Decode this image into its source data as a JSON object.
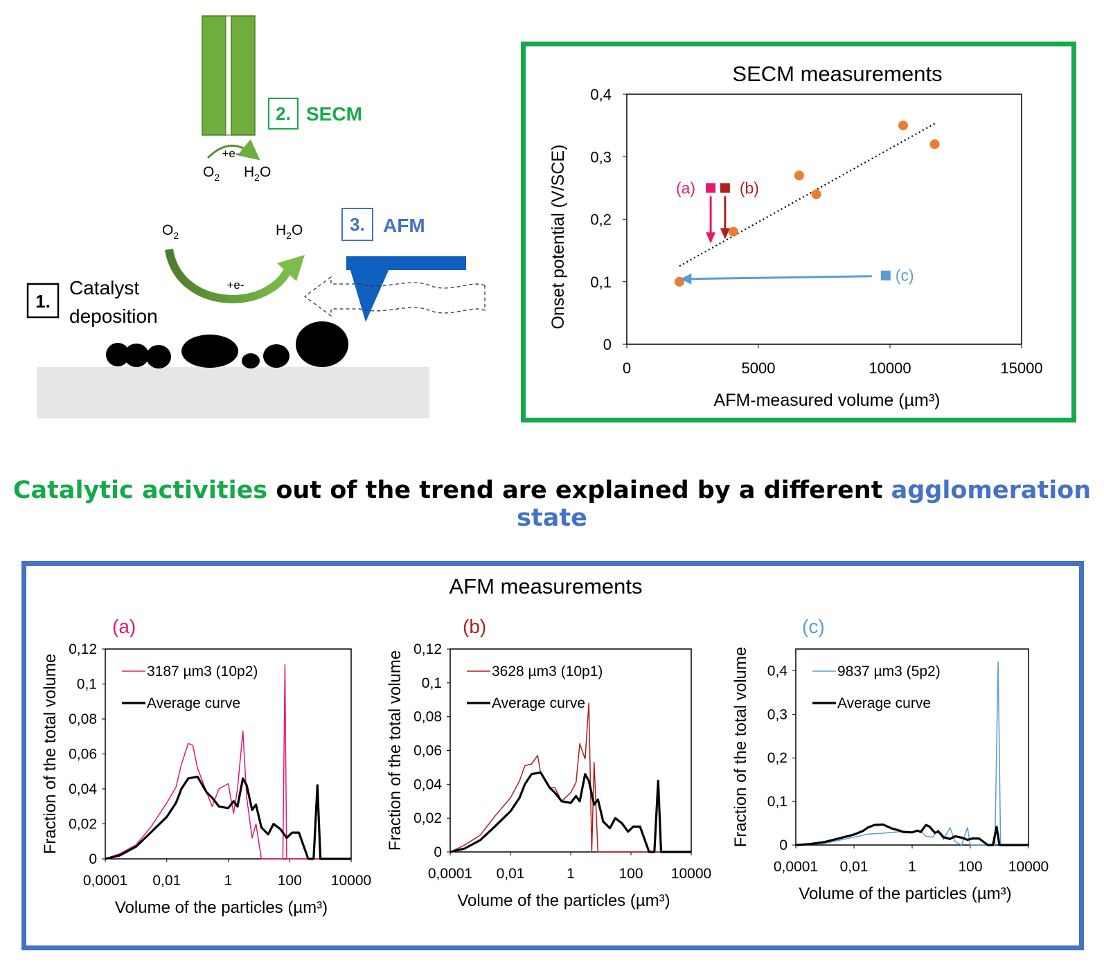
{
  "workflow": {
    "step1": {
      "number": "1.",
      "label_line1": "Catalyst",
      "label_line2": "deposition"
    },
    "step2": {
      "number": "2.",
      "label": "SECM"
    },
    "step3": {
      "number": "3.",
      "label": "AFM"
    },
    "reaction": {
      "reactant": "O",
      "reactant_sub": "2",
      "product_a": "H",
      "product_sub": "2",
      "product_b": "O",
      "electron": "+e-"
    }
  },
  "headline": {
    "part1": "Catalytic activities",
    "part2": " out of the trend are explained by a different ",
    "part3": "agglomeration state"
  },
  "colors": {
    "green": "#16A94A",
    "blue": "#4472C4",
    "orange": "#ED7D31",
    "pink": "#E6186E",
    "darkred": "#B01E1E",
    "lightblue": "#5B9BD5"
  },
  "chart_data": [
    {
      "type": "scatter",
      "title": "SECM measurements",
      "xlabel": "AFM-measured volume (µm³)",
      "ylabel": "Onset potential (V/SCE)",
      "xlim": [
        0,
        15000
      ],
      "ylim": [
        0,
        0.4
      ],
      "xticks": [
        "0",
        "5000",
        "10000",
        "15000"
      ],
      "yticks": [
        "0",
        "0,1",
        "0,2",
        "0,3",
        "0,4"
      ],
      "points": [
        {
          "x": 2000,
          "y": 0.1
        },
        {
          "x": 4050,
          "y": 0.18
        },
        {
          "x": 6550,
          "y": 0.27
        },
        {
          "x": 7200,
          "y": 0.24
        },
        {
          "x": 10500,
          "y": 0.35
        },
        {
          "x": 11700,
          "y": 0.32
        }
      ],
      "trendline": {
        "x": [
          2000,
          11700
        ],
        "y": [
          0.125,
          0.353
        ]
      },
      "annotations": [
        {
          "label": "(a)",
          "x": 3187,
          "y": 0.25
        },
        {
          "label": "(b)",
          "x": 3628,
          "y": 0.25
        },
        {
          "label": "(c)",
          "x": 9837,
          "y": 0.11
        }
      ]
    },
    {
      "type": "line",
      "panel_label": "(a)",
      "xlabel": "Volume of the particles (µm³)",
      "ylabel": "Fraction of the total volume",
      "xscale": "log",
      "xlim": [
        0.0001,
        10000
      ],
      "ylim": [
        0,
        0.12
      ],
      "xticks": [
        "0,0001",
        "0,01",
        "1",
        "100",
        "10000"
      ],
      "yticks": [
        "0",
        "0,02",
        "0,04",
        "0,06",
        "0,08",
        "0,1",
        "0,12"
      ],
      "series": [
        {
          "name": "3187 µm3 (10p2)",
          "x": [
            0.0001,
            0.0003,
            0.001,
            0.003,
            0.01,
            0.02,
            0.03,
            0.05,
            0.07,
            0.1,
            0.2,
            0.3,
            0.5,
            1,
            1.5,
            2,
            3,
            4,
            6,
            8,
            12,
            20,
            35,
            45,
            55,
            60,
            70,
            80,
            100,
            1000,
            10000
          ],
          "y": [
            0,
            0.003,
            0.008,
            0.018,
            0.032,
            0.041,
            0.054,
            0.066,
            0.065,
            0.052,
            0.038,
            0.03,
            0.04,
            0.043,
            0.026,
            0.04,
            0.073,
            0.035,
            0.012,
            0.02,
            0.0,
            0.0,
            0.0,
            0.0,
            0.0,
            0.0,
            0.111,
            0.0,
            0.0,
            0.0,
            0.0
          ]
        },
        {
          "name": "Average curve",
          "x": [
            0.0001,
            0.0003,
            0.001,
            0.003,
            0.01,
            0.02,
            0.03,
            0.05,
            0.1,
            0.2,
            0.3,
            0.5,
            1,
            1.5,
            2,
            3,
            4,
            6,
            8,
            12,
            20,
            30,
            50,
            80,
            120,
            200,
            400,
            600,
            800,
            1000,
            1200,
            2000,
            10000
          ],
          "y": [
            0,
            0.002,
            0.007,
            0.015,
            0.024,
            0.032,
            0.04,
            0.046,
            0.047,
            0.038,
            0.035,
            0.03,
            0.029,
            0.033,
            0.03,
            0.046,
            0.042,
            0.028,
            0.031,
            0.018,
            0.014,
            0.02,
            0.017,
            0.012,
            0.015,
            0.015,
            0.0,
            0.0,
            0.042,
            0.0,
            0.0,
            0.0,
            0.0
          ]
        }
      ]
    },
    {
      "type": "line",
      "panel_label": "(b)",
      "xlabel": "Volume of the particles (µm³)",
      "ylabel": "Fraction of the total volume",
      "xscale": "log",
      "xlim": [
        0.0001,
        10000
      ],
      "ylim": [
        0,
        0.12
      ],
      "xticks": [
        "0,0001",
        "0,01",
        "1",
        "100",
        "10000"
      ],
      "yticks": [
        "0",
        "0,02",
        "0,04",
        "0,06",
        "0,08",
        "0,1",
        "0,12"
      ],
      "series": [
        {
          "name": "3628 µm3 (10p1)",
          "x": [
            0.0001,
            0.0003,
            0.001,
            0.003,
            0.01,
            0.02,
            0.03,
            0.05,
            0.08,
            0.1,
            0.2,
            0.3,
            0.5,
            1,
            1.5,
            2,
            3,
            4,
            5,
            6,
            8,
            10,
            15,
            20,
            30,
            60,
            10000
          ],
          "y": [
            0,
            0.004,
            0.01,
            0.021,
            0.032,
            0.042,
            0.051,
            0.052,
            0.057,
            0.047,
            0.038,
            0.038,
            0.03,
            0.035,
            0.041,
            0.064,
            0.055,
            0.088,
            0.0,
            0.053,
            0.0,
            0.0,
            0.0,
            0.0,
            0.0,
            0.0,
            0.0
          ]
        },
        {
          "name": "Average curve",
          "x": [
            0.0001,
            0.0003,
            0.001,
            0.003,
            0.01,
            0.02,
            0.03,
            0.05,
            0.1,
            0.2,
            0.3,
            0.5,
            1,
            1.5,
            2,
            3,
            4,
            6,
            8,
            12,
            20,
            30,
            50,
            80,
            120,
            200,
            400,
            600,
            800,
            1000,
            1200,
            2000,
            10000
          ],
          "y": [
            0,
            0.002,
            0.007,
            0.015,
            0.024,
            0.032,
            0.04,
            0.046,
            0.047,
            0.038,
            0.035,
            0.03,
            0.029,
            0.033,
            0.03,
            0.046,
            0.042,
            0.028,
            0.031,
            0.018,
            0.014,
            0.02,
            0.017,
            0.012,
            0.015,
            0.015,
            0.0,
            0.0,
            0.042,
            0.0,
            0.0,
            0.0,
            0.0
          ]
        }
      ]
    },
    {
      "type": "line",
      "panel_label": "(c)",
      "xlabel": "Volume of the particles (µm³)",
      "ylabel": "Fraction of the total volume",
      "xscale": "log",
      "xlim": [
        0.0001,
        10000
      ],
      "ylim": [
        0,
        0.45
      ],
      "xticks": [
        "0,0001",
        "0,01",
        "1",
        "100",
        "10000"
      ],
      "yticks": [
        "0",
        "0,1",
        "0,2",
        "0,3",
        "0,4"
      ],
      "series": [
        {
          "name": "9837 µm3 (5p2)",
          "x": [
            0.0001,
            0.001,
            0.01,
            0.03,
            0.1,
            0.3,
            1,
            2,
            3,
            5,
            8,
            12,
            20,
            30,
            50,
            80,
            100,
            150,
            300,
            500,
            700,
            900,
            1100,
            1500,
            10000
          ],
          "y": [
            0,
            0.004,
            0.018,
            0.025,
            0.027,
            0.03,
            0.03,
            0.032,
            0.02,
            0.018,
            0.035,
            0.012,
            0.04,
            0.008,
            0.0,
            0.04,
            0.0,
            0.0,
            0.0,
            0.0,
            0.0,
            0.42,
            0.0,
            0.0,
            0.0
          ]
        },
        {
          "name": "Average curve",
          "x": [
            0.0001,
            0.0003,
            0.001,
            0.003,
            0.01,
            0.02,
            0.03,
            0.05,
            0.1,
            0.2,
            0.3,
            0.5,
            1,
            1.5,
            2,
            3,
            4,
            6,
            8,
            12,
            20,
            30,
            50,
            80,
            120,
            200,
            400,
            600,
            800,
            1000,
            1200,
            2000,
            10000
          ],
          "y": [
            0,
            0.002,
            0.007,
            0.015,
            0.024,
            0.032,
            0.04,
            0.046,
            0.047,
            0.038,
            0.035,
            0.03,
            0.029,
            0.033,
            0.03,
            0.046,
            0.042,
            0.028,
            0.031,
            0.018,
            0.014,
            0.02,
            0.017,
            0.012,
            0.015,
            0.015,
            0.0,
            0.0,
            0.042,
            0.0,
            0.0,
            0.0,
            0.0
          ]
        }
      ]
    }
  ],
  "afm_title": "AFM measurements"
}
